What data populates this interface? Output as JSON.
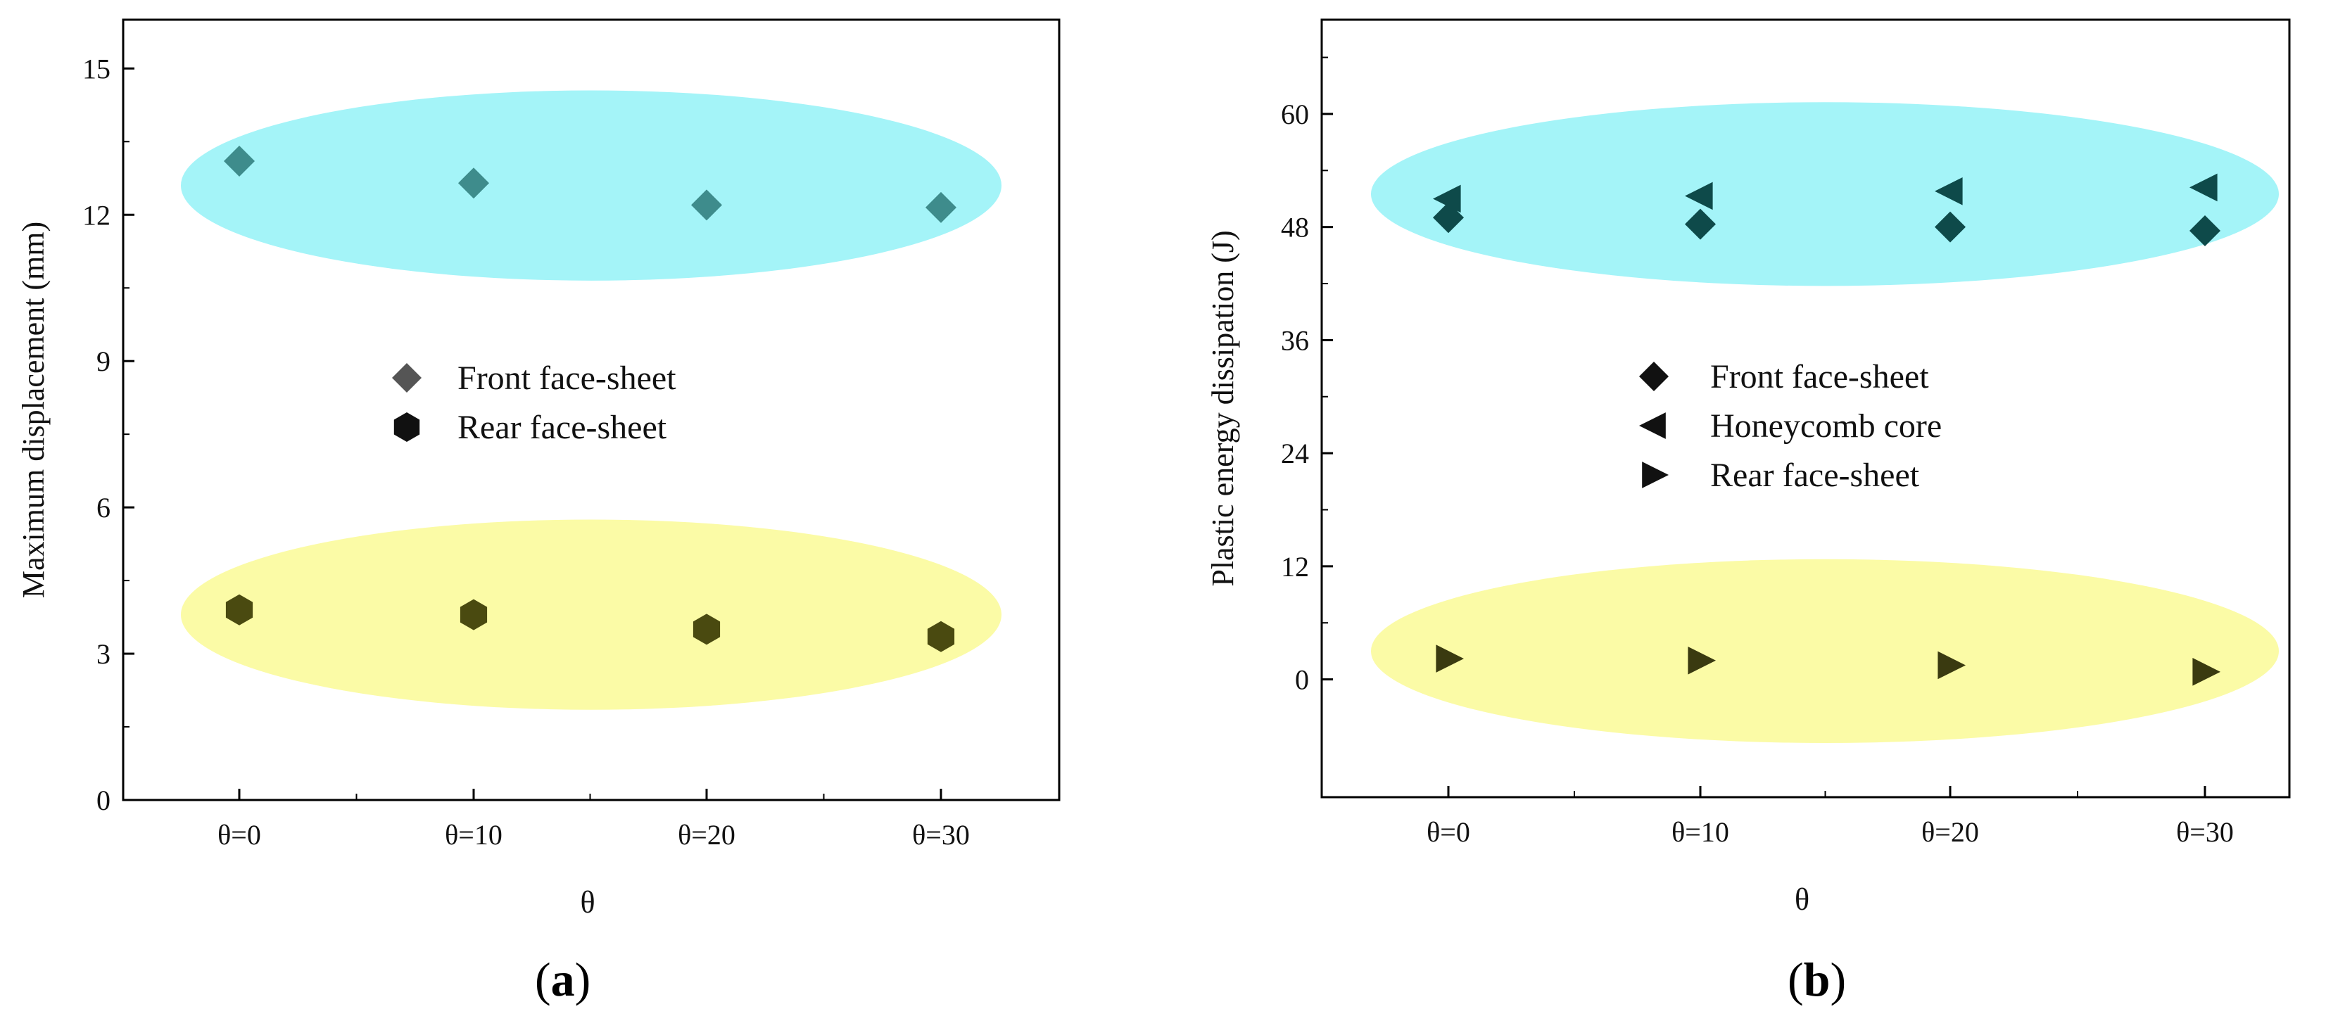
{
  "chart_data": [
    {
      "id": "a",
      "type": "scatter",
      "title": "",
      "caption_letter": "a",
      "xlabel": "θ",
      "ylabel": "Maximum displacement (mm)",
      "categories": [
        "θ=0",
        "θ=10",
        "θ=20",
        "θ=30"
      ],
      "ylim": [
        0,
        16
      ],
      "yticks": [
        0,
        3,
        6,
        9,
        12,
        15
      ],
      "series": [
        {
          "name": "Front face-sheet",
          "marker": "diamond",
          "color": "#3e8c8c",
          "values": [
            13.1,
            12.65,
            12.2,
            12.15
          ]
        },
        {
          "name": "Rear face-sheet",
          "marker": "hexagon",
          "color": "#4a4a10",
          "values": [
            3.9,
            3.8,
            3.5,
            3.35
          ]
        }
      ],
      "legend_series": [
        {
          "name": "Front face-sheet",
          "marker": "diamond",
          "color": "#555555"
        },
        {
          "name": "Rear face-sheet",
          "marker": "hexagon",
          "color": "#111111"
        }
      ],
      "highlight_bands": [
        {
          "color": "#a4f4f8",
          "ycenter": 12.6,
          "yspan": 3.9
        },
        {
          "color": "#fbfba6",
          "ycenter": 3.8,
          "yspan": 3.9
        }
      ],
      "legend_position": "center"
    },
    {
      "id": "b",
      "type": "scatter",
      "title": "",
      "caption_letter": "b",
      "xlabel": "θ",
      "ylabel": "Plastic energy dissipation (J)",
      "categories": [
        "θ=0",
        "θ=10",
        "θ=20",
        "θ=30"
      ],
      "ylim": [
        -12.5,
        70
      ],
      "yticks": [
        0,
        12,
        24,
        36,
        48,
        60
      ],
      "series": [
        {
          "name": "Front face-sheet",
          "marker": "diamond",
          "color": "#0e4a4a",
          "values": [
            49.0,
            48.3,
            48.0,
            47.6
          ]
        },
        {
          "name": "Honeycomb core",
          "marker": "triangle-left",
          "color": "#0e4a4a",
          "values": [
            51.0,
            51.3,
            51.8,
            52.2
          ]
        },
        {
          "name": "Rear face-sheet",
          "marker": "triangle-right",
          "color": "#3a3a10",
          "values": [
            2.2,
            2.0,
            1.5,
            0.8
          ]
        }
      ],
      "legend_series": [
        {
          "name": "Front face-sheet",
          "marker": "diamond",
          "color": "#111111"
        },
        {
          "name": "Honeycomb core",
          "marker": "triangle-left",
          "color": "#111111"
        },
        {
          "name": "Rear face-sheet",
          "marker": "triangle-right",
          "color": "#111111"
        }
      ],
      "highlight_bands": [
        {
          "color": "#a4f4f8",
          "ycenter": 51.5,
          "yspan": 19.5
        },
        {
          "color": "#fbfba6",
          "ycenter": 3.0,
          "yspan": 19.5
        }
      ],
      "legend_position": "center"
    }
  ]
}
